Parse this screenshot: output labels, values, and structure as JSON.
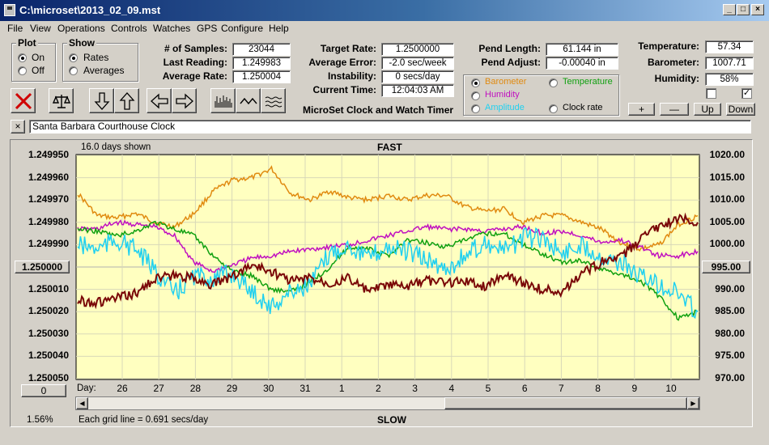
{
  "window": {
    "title": "C:\\microset\\2013_02_09.mst"
  },
  "menu": [
    "File",
    "View",
    "Operations",
    "Controls",
    "Watches",
    "GPS",
    "Configure",
    "Help"
  ],
  "plot_group": {
    "title": "Plot",
    "options": [
      "On",
      "Off"
    ],
    "selected": "On"
  },
  "show_group": {
    "title": "Show",
    "options": [
      "Rates",
      "Averages"
    ],
    "selected": "Rates"
  },
  "stats": {
    "samples_label": "# of Samples:",
    "samples": "23044",
    "last_reading_label": "Last Reading:",
    "last_reading": "1.249983",
    "average_rate_label": "Average Rate:",
    "average_rate": "1.250004",
    "target_rate_label": "Target Rate:",
    "target_rate": "1.2500000",
    "average_error_label": "Average Error:",
    "average_error": "-2.0 sec/week",
    "instability_label": "Instability:",
    "instability": "0 secs/day",
    "current_time_label": "Current Time:",
    "current_time": "12:04:03 AM",
    "pend_length_label": "Pend Length:",
    "pend_length": "61.144 in",
    "pend_adjust_label": "Pend Adjust:",
    "pend_adjust": "-0.00040 in",
    "temperature_label": "Temperature:",
    "temperature": "57.34",
    "barometer_label": "Barometer:",
    "barometer": "1007.71",
    "humidity_label": "Humidity:",
    "humidity": "58%"
  },
  "app_caption": "MicroSet Clock and Watch Timer",
  "series_select": {
    "options": [
      {
        "label": "Barometer",
        "color": "#e08a10",
        "selected": true
      },
      {
        "label": "Temperature",
        "color": "#10a010",
        "selected": false
      },
      {
        "label": "Humidity",
        "color": "#c010c0",
        "selected": false
      },
      {
        "label": "Amplitude",
        "color": "#20d0f0",
        "selected": false
      },
      {
        "label": "Clock rate",
        "color": "#000000",
        "selected": false
      }
    ]
  },
  "side_buttons": {
    "plus": "+",
    "minus": "—",
    "up": "Up",
    "down": "Down"
  },
  "checkboxes": [
    {
      "checked": false
    },
    {
      "checked": true
    }
  ],
  "clock_name": "Santa Barbara Courthouse Clock",
  "chart_data": {
    "type": "line",
    "top_label": "FAST",
    "bottom_label": "SLOW",
    "days_shown": "16.0 days shown",
    "grid_note": "Each grid line = 0.691 secs/day",
    "percent": "1.56%",
    "left_reset": "0",
    "left_axis": {
      "ticks": [
        "1.249950",
        "1.249960",
        "1.249970",
        "1.249980",
        "1.249990",
        "1.250000",
        "1.250010",
        "1.250020",
        "1.250030",
        "1.250040",
        "1.250050"
      ],
      "center_button": "1.250000",
      "range": [
        1.24995,
        1.25005
      ]
    },
    "right_axis": {
      "ticks": [
        "1020.00",
        "1015.00",
        "1010.00",
        "1005.00",
        "1000.00",
        "995.00",
        "990.00",
        "985.00",
        "980.00",
        "975.00",
        "970.00"
      ],
      "center_button": "995.00",
      "range": [
        970,
        1020
      ]
    },
    "x_axis": {
      "prefix": "Day:",
      "ticks": [
        "26",
        "27",
        "28",
        "29",
        "30",
        "31",
        "1",
        "2",
        "3",
        "4",
        "5",
        "6",
        "7",
        "8",
        "9",
        "10"
      ],
      "range_index": [
        0,
        16
      ]
    },
    "series": [
      {
        "color": "#e08a10",
        "x": [
          0,
          0.5,
          1,
          1.5,
          2,
          2.5,
          3,
          3.5,
          4,
          4.5,
          5,
          5.5,
          6,
          6.5,
          7,
          7.5,
          8,
          8.5,
          9,
          9.5,
          10,
          10.5,
          11,
          11.5,
          12,
          12.5,
          13,
          13.5,
          14,
          14.5,
          15,
          15.5,
          16
        ],
        "y": [
          1.249967,
          1.249977,
          1.249978,
          1.249976,
          1.24998,
          1.249982,
          1.249976,
          1.249966,
          1.249961,
          1.24996,
          1.249956,
          1.249967,
          1.24997,
          1.249966,
          1.249969,
          1.24997,
          1.249968,
          1.24997,
          1.249968,
          1.249968,
          1.249973,
          1.249975,
          1.249974,
          1.24998,
          1.249977,
          1.249977,
          1.24998,
          1.249983,
          1.249989,
          1.249992,
          1.24999,
          1.249981,
          1.249977
        ]
      },
      {
        "color": "#c010c0",
        "x": [
          0,
          0.5,
          1,
          1.5,
          2,
          2.5,
          3,
          3.5,
          4,
          4.5,
          5,
          5.5,
          6,
          6.5,
          7,
          7.5,
          8,
          8.5,
          9,
          9.5,
          10,
          10.5,
          11,
          11.5,
          12,
          12.5,
          13,
          13.5,
          14,
          14.5,
          15,
          15.5,
          16
        ],
        "y": [
          1.249983,
          1.249983,
          1.24998,
          1.249981,
          1.249982,
          1.249986,
          1.249998,
          1.250002,
          1.249999,
          1.249996,
          1.249995,
          1.249993,
          1.249992,
          1.249991,
          1.24999,
          1.249988,
          1.249986,
          1.249984,
          1.249982,
          1.249983,
          1.249983,
          1.249984,
          1.249983,
          1.249982,
          1.249985,
          1.249984,
          1.249986,
          1.249989,
          1.249988,
          1.249991,
          1.249995,
          1.249995,
          1.249993
        ]
      },
      {
        "color": "#10a010",
        "x": [
          0,
          0.5,
          1,
          1.5,
          2,
          2.5,
          3,
          3.5,
          4,
          4.5,
          5,
          5.5,
          6,
          6.5,
          7,
          7.5,
          8,
          8.5,
          9,
          9.5,
          10,
          10.5,
          11,
          11.5,
          12,
          12.5,
          13,
          13.5,
          14,
          14.5,
          15,
          15.5,
          16
        ],
        "y": [
          1.249983,
          1.249984,
          1.249986,
          1.249984,
          1.24998,
          1.249983,
          1.249986,
          1.249995,
          1.250002,
          1.250004,
          1.25001,
          1.250011,
          1.250007,
          1.25,
          1.249991,
          1.249992,
          1.249995,
          1.249988,
          1.249989,
          1.249991,
          1.249988,
          1.249985,
          1.249985,
          1.24999,
          1.249994,
          1.249998,
          1.249997,
          1.250001,
          1.250003,
          1.250006,
          1.250013,
          1.250023,
          1.25002
        ]
      },
      {
        "color": "#20d0f0",
        "x": [
          0,
          0.5,
          1,
          1.5,
          2,
          2.5,
          3,
          3.5,
          4,
          4.5,
          5,
          5.5,
          6,
          6.5,
          7,
          7.5,
          8,
          8.5,
          9,
          9.5,
          10,
          10.5,
          11,
          11.5,
          12,
          12.5,
          13,
          13.5,
          14,
          14.5,
          15,
          15.5,
          16
        ],
        "y": [
          1.24999,
          1.249992,
          1.249988,
          1.249992,
          1.250002,
          1.250012,
          1.250004,
          1.250005,
          1.250003,
          1.250011,
          1.250018,
          1.250011,
          1.250008,
          1.249994,
          1.24999,
          1.249996,
          1.249991,
          1.249993,
          1.249997,
          1.250001,
          1.249995,
          1.249989,
          1.249993,
          1.249987,
          1.249987,
          1.249994,
          1.24999,
          1.249995,
          1.249998,
          1.250004,
          1.250008,
          1.250012,
          1.25002
        ]
      },
      {
        "color": "#7a0808",
        "x": [
          0,
          0.5,
          1,
          1.5,
          2,
          2.5,
          3,
          3.5,
          4,
          4.5,
          5,
          5.5,
          6,
          6.5,
          7,
          7.5,
          8,
          8.5,
          9,
          9.5,
          10,
          10.5,
          11,
          11.5,
          12,
          12.5,
          13,
          13.5,
          14,
          14.5,
          15,
          15.5,
          16
        ],
        "y": [
          1.250015,
          1.250016,
          1.250014,
          1.250012,
          1.250005,
          1.250004,
          1.250005,
          1.250008,
          1.250004,
          1.249999,
          1.250002,
          1.250006,
          1.250005,
          1.250007,
          1.250005,
          1.250011,
          1.250008,
          1.250009,
          1.250006,
          1.250007,
          1.250006,
          1.250009,
          1.250003,
          1.250007,
          1.25001,
          1.250011,
          1.250003,
          1.249998,
          1.249996,
          1.249988,
          1.249982,
          1.249978,
          1.24998
        ]
      }
    ]
  }
}
